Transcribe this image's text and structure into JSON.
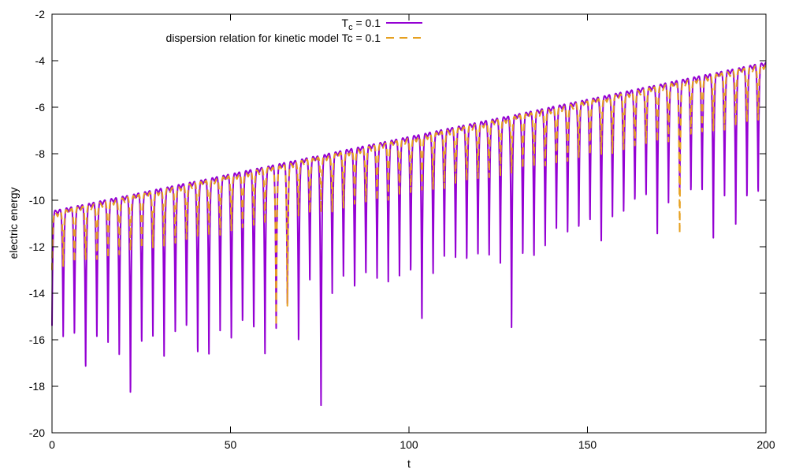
{
  "chart_data": {
    "type": "line",
    "title": "",
    "xlabel": "t",
    "ylabel": "electric energy",
    "xlim": [
      0,
      200
    ],
    "ylim": [
      -20,
      -2
    ],
    "xticks": [
      0,
      50,
      100,
      150,
      200
    ],
    "yticks": [
      -20,
      -18,
      -16,
      -14,
      -12,
      -10,
      -8,
      -6,
      -4,
      -2
    ],
    "grid": false,
    "legend_position": "top-center",
    "oscillation_period": 3.14,
    "series": [
      {
        "name": "T_c = 0.1",
        "legend_main": "T",
        "legend_sub": "c",
        "legend_rest": " = 0.1",
        "color": "#9400d3",
        "style": "solid",
        "envelope_start": -10.3,
        "envelope_end": -3.9,
        "dip_minima": [
          -15.4,
          -16.0,
          -16.0,
          -17.5,
          -16.0,
          -16.1,
          -16.8,
          -18.7,
          -16.4,
          -16.0,
          -16.7,
          -15.8,
          -15.7,
          -16.9,
          -16.8,
          -15.6,
          -16.1,
          -15.5,
          -15.8,
          -16.8,
          -15.5,
          -14.6,
          -16.4,
          -13.7,
          -19.1,
          -14.0,
          -13.4,
          -14.0,
          -13.4,
          -13.5,
          -13.5,
          -13.4,
          -13.3,
          -15.5,
          -13.3,
          -12.4,
          -12.6,
          -12.8,
          -12.6,
          -12.5,
          -12.7,
          -15.7,
          -12.6,
          -12.7,
          -12.1,
          -11.2,
          -11.5,
          -11.4,
          -11.1,
          -11.9,
          -10.7,
          -10.6,
          -10.2,
          -10.0,
          -11.6,
          -10.1,
          -9.7,
          -9.8,
          -9.8,
          -11.8,
          -9.8,
          -11.2,
          -10.1,
          -9.9
        ]
      },
      {
        "name": "dispersion relation for kinetic model Tc = 0.1",
        "color": "#e6a020",
        "style": "dashed",
        "envelope_start": -10.4,
        "envelope_end": -4.0,
        "dip_depth": 2.6,
        "extra_dip_minima": [
          {
            "t": 61.3,
            "y": -15.4
          },
          {
            "t": 64.5,
            "y": -14.7
          },
          {
            "t": 175.8,
            "y": -11.6
          }
        ]
      }
    ]
  }
}
